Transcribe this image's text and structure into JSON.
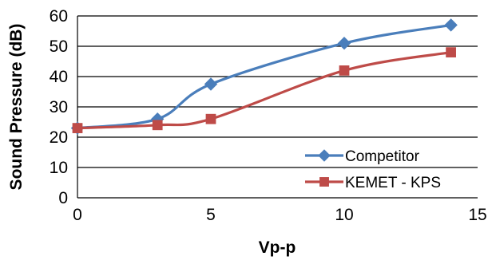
{
  "chart_data": {
    "type": "line",
    "xlabel": "Vp-p",
    "ylabel": "Sound Pressure (dB)",
    "xlim": [
      0,
      15
    ],
    "ylim": [
      0,
      60
    ],
    "x_ticks": [
      0,
      5,
      10,
      15
    ],
    "y_ticks": [
      0,
      10,
      20,
      30,
      40,
      50,
      60
    ],
    "grid": "horizontal",
    "legend_position": "bottom-right",
    "smooth": true,
    "series": [
      {
        "name": "Competitor",
        "color": "#4a7ebb",
        "marker": "diamond",
        "x": [
          0,
          3,
          5,
          10,
          14
        ],
        "y": [
          23,
          26,
          37.5,
          51,
          57
        ]
      },
      {
        "name": "KEMET - KPS",
        "color": "#be4b48",
        "marker": "square",
        "x": [
          0,
          3,
          5,
          10,
          14
        ],
        "y": [
          23,
          24,
          26,
          42,
          48
        ]
      }
    ]
  }
}
